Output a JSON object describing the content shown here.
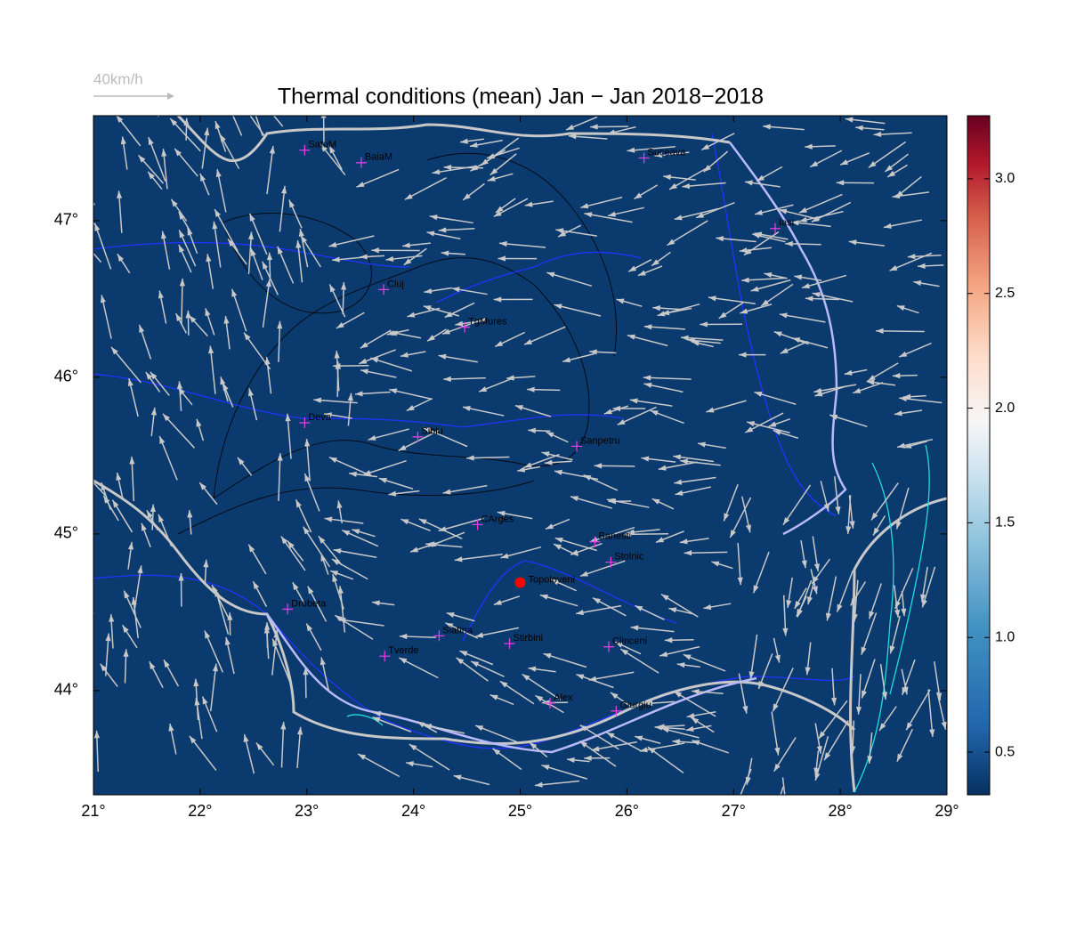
{
  "title": "Thermal conditions (mean) Jan − Jan  2018−2018",
  "scale_label": "40km/h",
  "map": {
    "lonlim": [
      21,
      29
    ],
    "latlim": [
      43.335,
      47.67
    ],
    "xticks": [
      {
        "value": 21,
        "label": "21°"
      },
      {
        "value": 22,
        "label": "22°"
      },
      {
        "value": 23,
        "label": "23°"
      },
      {
        "value": 24,
        "label": "24°"
      },
      {
        "value": 25,
        "label": "25°"
      },
      {
        "value": 26,
        "label": "26°"
      },
      {
        "value": 27,
        "label": "27°"
      },
      {
        "value": 28,
        "label": "28°"
      },
      {
        "value": 29,
        "label": "29°"
      }
    ],
    "yticks": [
      {
        "value": 44,
        "label": "44°"
      },
      {
        "value": 45,
        "label": "45°"
      },
      {
        "value": 46,
        "label": "46°"
      },
      {
        "value": 47,
        "label": "47°"
      }
    ],
    "cities": [
      {
        "name": "SatuM",
        "lon": 22.98,
        "lat": 47.45
      },
      {
        "name": "BaiaM",
        "lon": 23.51,
        "lat": 47.37
      },
      {
        "name": "Suceava",
        "lon": 26.16,
        "lat": 47.4
      },
      {
        "name": "Iasi",
        "lon": 27.39,
        "lat": 46.95
      },
      {
        "name": "Cluj",
        "lon": 23.72,
        "lat": 46.56
      },
      {
        "name": "TgMures",
        "lon": 24.48,
        "lat": 46.32
      },
      {
        "name": "Deva",
        "lon": 22.98,
        "lat": 45.71
      },
      {
        "name": "Sibiu",
        "lon": 24.04,
        "lat": 45.62
      },
      {
        "name": "Sanpetru",
        "lon": 25.53,
        "lat": 45.56
      },
      {
        "name": "CArges",
        "lon": 24.6,
        "lat": 45.06
      },
      {
        "name": "Banesti",
        "lon": 25.7,
        "lat": 44.95
      },
      {
        "name": "Stolnic",
        "lon": 25.85,
        "lat": 44.82
      },
      {
        "name": "Drobeta",
        "lon": 22.82,
        "lat": 44.52
      },
      {
        "name": "Slatina",
        "lon": 24.24,
        "lat": 44.35
      },
      {
        "name": "Stirbini",
        "lon": 24.9,
        "lat": 44.3
      },
      {
        "name": "Clinceni",
        "lon": 25.83,
        "lat": 44.28
      },
      {
        "name": "Tverde",
        "lon": 23.73,
        "lat": 44.22
      },
      {
        "name": "Alex",
        "lon": 25.28,
        "lat": 43.92
      },
      {
        "name": "Giurgiu",
        "lon": 25.9,
        "lat": 43.87
      }
    ],
    "marker": {
      "name": "Topoloveni",
      "lon": 25.0,
      "lat": 44.69
    }
  },
  "colorbar": {
    "lim": [
      0.314,
      3.275
    ],
    "ticks": [
      0.5,
      {
        "value": 1.0,
        "label": "1.0"
      },
      1.5,
      {
        "value": 2.0,
        "label": "2.0"
      },
      2.5,
      {
        "value": 3.0,
        "label": "3.0"
      }
    ]
  }
}
